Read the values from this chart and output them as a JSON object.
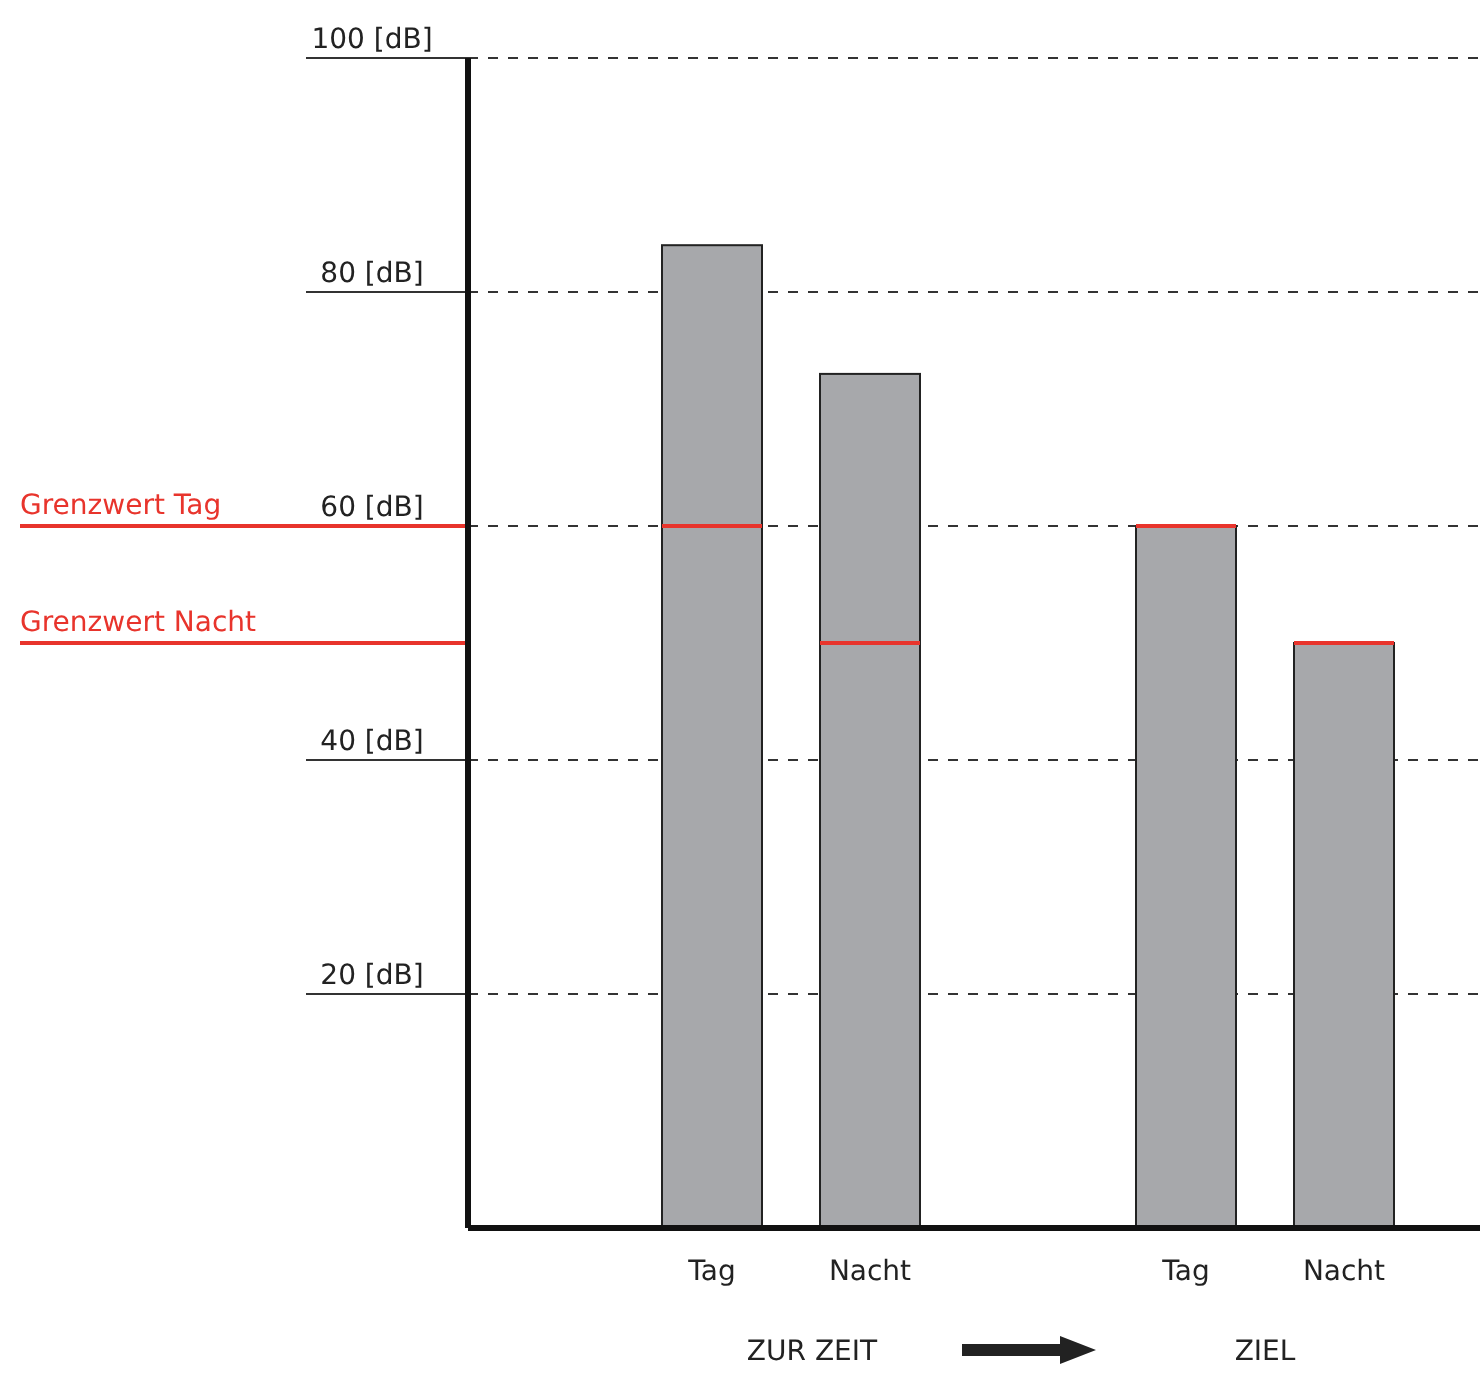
{
  "chart_data": {
    "type": "bar",
    "categories": [
      "Tag",
      "Nacht",
      null,
      "Tag",
      "Nacht"
    ],
    "values": [
      84,
      73,
      null,
      60,
      50
    ],
    "color": "#a7a8ab",
    "ylim": [
      0,
      100
    ],
    "yticks": [
      {
        "value": 20,
        "label": "20  [dB]"
      },
      {
        "value": 40,
        "label": "40  [dB]"
      },
      {
        "value": 60,
        "label": "60  [dB]"
      },
      {
        "value": 80,
        "label": "80  [dB]"
      },
      {
        "value": 100,
        "label": "100 [dB]"
      }
    ],
    "grid": "y",
    "ref_lines": [
      {
        "axis": "y",
        "value": 60,
        "label": "Grenzwert Tag",
        "color": "#e8342c"
      },
      {
        "axis": "y",
        "value": 50,
        "label": "Grenzwert Nacht",
        "color": "#e8342c"
      }
    ],
    "annotations": [
      "ZUR ZEIT",
      "ZIEL"
    ]
  }
}
